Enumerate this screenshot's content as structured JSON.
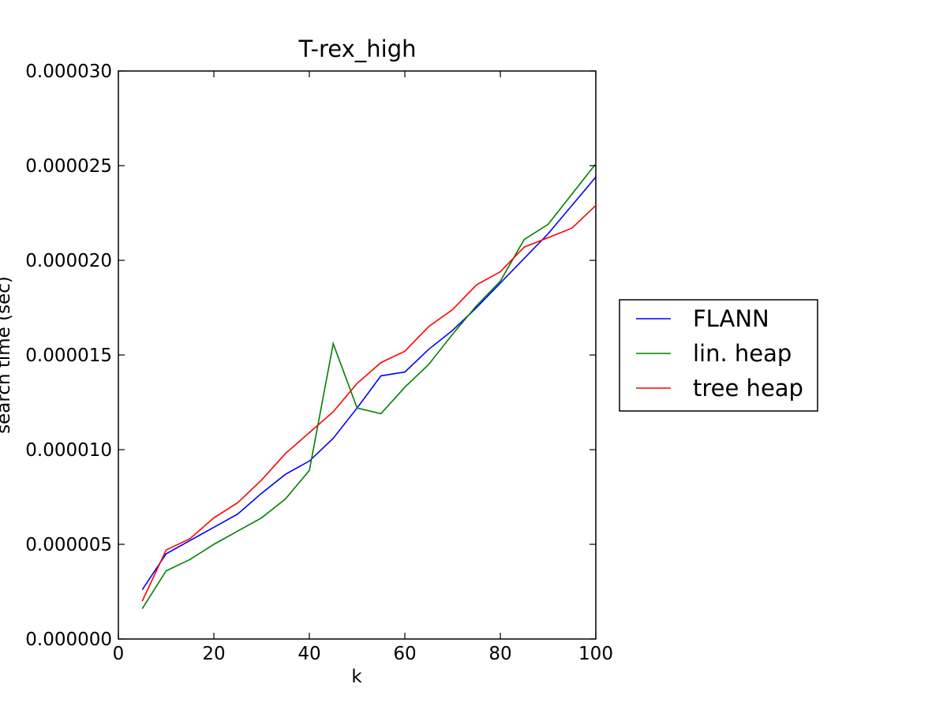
{
  "chart_data": {
    "type": "line",
    "title": "T-rex_high",
    "xlabel": "k",
    "ylabel": "search time (sec)",
    "xlim": [
      0,
      100
    ],
    "ylim": [
      0,
      3e-05
    ],
    "xticks": [
      0,
      20,
      40,
      60,
      80,
      100
    ],
    "xtick_labels": [
      "0",
      "20",
      "40",
      "60",
      "80",
      "100"
    ],
    "yticks": [
      0,
      5e-06,
      1e-05,
      1.5e-05,
      2e-05,
      2.5e-05,
      3e-05
    ],
    "ytick_labels": [
      "0.000000",
      "0.000005",
      "0.000010",
      "0.000015",
      "0.000020",
      "0.000025",
      "0.000030"
    ],
    "legend_position": "right, outside plot",
    "x": [
      5,
      10,
      15,
      20,
      25,
      30,
      35,
      40,
      45,
      50,
      55,
      60,
      65,
      70,
      75,
      80,
      85,
      90,
      95,
      100
    ],
    "series": [
      {
        "name": "FLANN",
        "color": "#0000ff",
        "values": [
          2.6e-06,
          4.5e-06,
          5.2e-06,
          5.9e-06,
          6.6e-06,
          7.7e-06,
          8.7e-06,
          9.4e-06,
          1.06e-05,
          1.22e-05,
          1.39e-05,
          1.41e-05,
          1.53e-05,
          1.63e-05,
          1.75e-05,
          1.88e-05,
          2.01e-05,
          2.14e-05,
          2.29e-05,
          2.44e-05
        ]
      },
      {
        "name": "lin. heap",
        "color": "#008000",
        "values": [
          1.6e-06,
          3.6e-06,
          4.2e-06,
          5e-06,
          5.7e-06,
          6.4e-06,
          7.4e-06,
          8.9e-06,
          1.56e-05,
          1.22e-05,
          1.19e-05,
          1.33e-05,
          1.45e-05,
          1.61e-05,
          1.76e-05,
          1.89e-05,
          2.11e-05,
          2.19e-05,
          2.35e-05,
          2.51e-05
        ]
      },
      {
        "name": "tree heap",
        "color": "#ff0000",
        "values": [
          2e-06,
          4.7e-06,
          5.3e-06,
          6.4e-06,
          7.2e-06,
          8.4e-06,
          9.8e-06,
          1.09e-05,
          1.2e-05,
          1.35e-05,
          1.46e-05,
          1.52e-05,
          1.65e-05,
          1.74e-05,
          1.87e-05,
          1.94e-05,
          2.07e-05,
          2.12e-05,
          2.17e-05,
          2.29e-05
        ]
      }
    ]
  }
}
